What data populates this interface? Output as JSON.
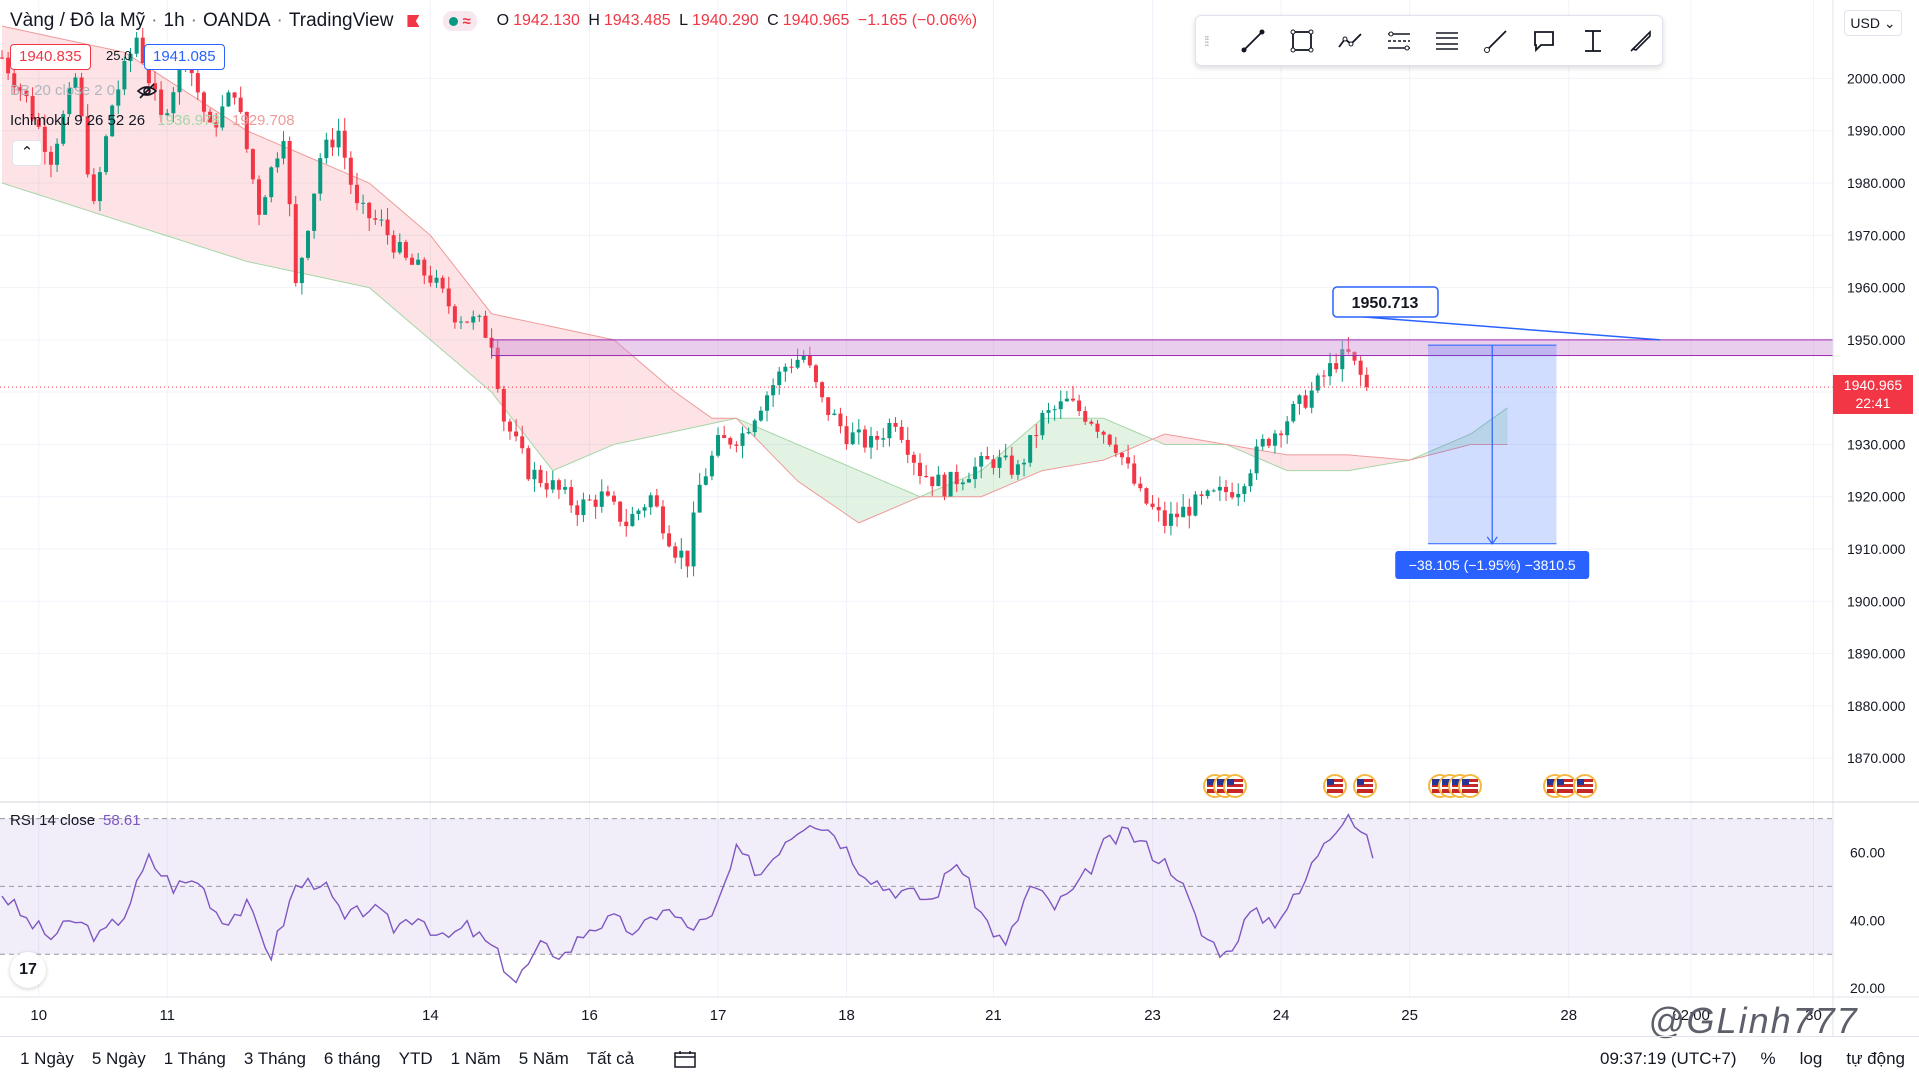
{
  "header": {
    "symbol": "Vàng / Đô la Mỹ",
    "interval": "1h",
    "broker": "OANDA",
    "platform": "TradingView",
    "live_glyph": "≈",
    "ohlc": {
      "o_label": "O",
      "o": "1942.130",
      "h_label": "H",
      "h": "1943.485",
      "l_label": "L",
      "l": "1940.290",
      "c_label": "C",
      "c": "1940.965",
      "change": "−1.165 (−0.06%)"
    }
  },
  "quotes": {
    "sell": "1940.835",
    "spread": "25.0",
    "buy": "1941.085"
  },
  "indicators": {
    "bb": {
      "name": "BB 20 close 2 0"
    },
    "ichimoku": {
      "name": "Ichimoku 9 26 52 26",
      "value1": "1936.978",
      "value2": "1929.708"
    },
    "rsi": {
      "name": "RSI 14 close",
      "value": "58.61"
    }
  },
  "currency_button": "USD",
  "last_price": {
    "price": "1940.965",
    "countdown": "22:41"
  },
  "drawing_toolbar": [
    "trend-line-icon",
    "rectangle-icon",
    "path-icon",
    "parallel-channel-icon",
    "fib-channel-icon",
    "ray-icon",
    "callout-icon",
    "price-range-icon",
    "brush-icon"
  ],
  "annotations": {
    "resistance_label": "1950.713",
    "measure_label": "−38.105 (−1.95%) −3810.5"
  },
  "footer": {
    "ranges": [
      "1 Ngày",
      "5 Ngày",
      "1 Tháng",
      "3 Tháng",
      "6 tháng",
      "YTD",
      "1 Năm",
      "5 Năm",
      "Tất cả"
    ],
    "time": "09:37:19 (UTC+7)",
    "percent": "%",
    "log": "log",
    "auto": "tự động"
  },
  "watermark": "@GLinh777",
  "tv_logo": "17",
  "chart_data": {
    "type": "candlestick",
    "price_axis": {
      "ylim": [
        1862,
        2015
      ],
      "ticks": [
        2000,
        1990,
        1980,
        1970,
        1960,
        1950,
        1940,
        1930,
        1920,
        1910,
        1900,
        1890,
        1880,
        1870
      ],
      "tick_labels": [
        "2000.000",
        "1990.000",
        "1980.000",
        "1970.000",
        "1960.000",
        "1950.000",
        "1940.000",
        "1930.000",
        "1920.000",
        "1910.000",
        "1900.000",
        "1890.000",
        "1880.000",
        "1870.000"
      ]
    },
    "time_axis": {
      "labels": [
        "10",
        "11",
        "14",
        "16",
        "17",
        "18",
        "21",
        "23",
        "24",
        "25",
        "28",
        "02:00",
        "30"
      ],
      "label_bar_index": [
        6,
        27,
        70,
        96,
        117,
        138,
        162,
        188,
        209,
        230,
        256,
        276,
        296
      ]
    },
    "price_path": [
      [
        0,
        2004
      ],
      [
        4,
        1996
      ],
      [
        8,
        1985
      ],
      [
        12,
        2000
      ],
      [
        15,
        1975
      ],
      [
        18,
        1995
      ],
      [
        22,
        2008
      ],
      [
        26,
        1992
      ],
      [
        30,
        2005
      ],
      [
        34,
        1990
      ],
      [
        38,
        1998
      ],
      [
        42,
        1975
      ],
      [
        46,
        1990
      ],
      [
        48,
        1960
      ],
      [
        52,
        1985
      ],
      [
        55,
        1990
      ],
      [
        58,
        1975
      ],
      [
        62,
        1972
      ],
      [
        66,
        1965
      ],
      [
        70,
        1962
      ],
      [
        74,
        1955
      ],
      [
        78,
        1953
      ],
      [
        80,
        1950
      ],
      [
        82,
        1935
      ],
      [
        86,
        1925
      ],
      [
        90,
        1922
      ],
      [
        94,
        1918
      ],
      [
        98,
        1920
      ],
      [
        102,
        1915
      ],
      [
        106,
        1920
      ],
      [
        110,
        1910
      ],
      [
        112,
        1908
      ],
      [
        114,
        1922
      ],
      [
        117,
        1930
      ],
      [
        121,
        1932
      ],
      [
        124,
        1938
      ],
      [
        128,
        1945
      ],
      [
        131,
        1947
      ],
      [
        134,
        1938
      ],
      [
        138,
        1932
      ],
      [
        142,
        1930
      ],
      [
        146,
        1935
      ],
      [
        150,
        1925
      ],
      [
        154,
        1922
      ],
      [
        158,
        1925
      ],
      [
        162,
        1927
      ],
      [
        166,
        1925
      ],
      [
        170,
        1935
      ],
      [
        174,
        1938
      ],
      [
        178,
        1935
      ],
      [
        182,
        1930
      ],
      [
        186,
        1920
      ],
      [
        190,
        1915
      ],
      [
        194,
        1918
      ],
      [
        198,
        1920
      ],
      [
        202,
        1922
      ],
      [
        206,
        1930
      ],
      [
        210,
        1935
      ],
      [
        214,
        1940
      ],
      [
        218,
        1946
      ],
      [
        220,
        1947
      ],
      [
        222,
        1943
      ],
      [
        223,
        1940.965
      ]
    ],
    "ichimoku_span_a": [
      [
        0,
        1980
      ],
      [
        40,
        1965
      ],
      [
        60,
        1960
      ],
      [
        70,
        1950
      ],
      [
        80,
        1940
      ],
      [
        90,
        1925
      ],
      [
        100,
        1930
      ],
      [
        120,
        1935
      ],
      [
        140,
        1925
      ],
      [
        150,
        1920
      ],
      [
        160,
        1925
      ],
      [
        170,
        1935
      ],
      [
        180,
        1935
      ],
      [
        190,
        1930
      ],
      [
        200,
        1930
      ],
      [
        210,
        1925
      ],
      [
        220,
        1925
      ],
      [
        230,
        1927
      ],
      [
        240,
        1932
      ],
      [
        246,
        1937
      ]
    ],
    "ichimoku_span_b": [
      [
        0,
        2010
      ],
      [
        20,
        2005
      ],
      [
        40,
        1990
      ],
      [
        60,
        1980
      ],
      [
        70,
        1970
      ],
      [
        80,
        1955
      ],
      [
        100,
        1950
      ],
      [
        110,
        1940
      ],
      [
        116,
        1935
      ],
      [
        120,
        1935
      ],
      [
        130,
        1923
      ],
      [
        140,
        1915
      ],
      [
        150,
        1920
      ],
      [
        160,
        1920
      ],
      [
        170,
        1925
      ],
      [
        180,
        1927
      ],
      [
        190,
        1932
      ],
      [
        200,
        1930
      ],
      [
        210,
        1928
      ],
      [
        220,
        1928
      ],
      [
        230,
        1927
      ],
      [
        240,
        1930
      ],
      [
        246,
        1930
      ]
    ],
    "resistance_zone": {
      "x_start_bar": 80,
      "x_end_bar": 302,
      "y_top": 1950,
      "y_bottom": 1947
    },
    "measure": {
      "x_start_bar": 233,
      "x_end_bar": 254,
      "y_top": 1949,
      "y_bottom": 1911
    },
    "rsi": {
      "ylim": [
        18,
        74
      ],
      "ticks": [
        60,
        40,
        20
      ],
      "tick_labels": [
        "60.00",
        "40.00",
        "20.00"
      ],
      "levels": [
        70,
        50,
        30
      ],
      "values": [
        [
          0,
          48
        ],
        [
          4,
          40
        ],
        [
          8,
          35
        ],
        [
          12,
          40
        ],
        [
          16,
          35
        ],
        [
          20,
          42
        ],
        [
          24,
          58
        ],
        [
          28,
          50
        ],
        [
          32,
          52
        ],
        [
          36,
          40
        ],
        [
          40,
          44
        ],
        [
          44,
          30
        ],
        [
          48,
          50
        ],
        [
          52,
          52
        ],
        [
          56,
          40
        ],
        [
          60,
          44
        ],
        [
          64,
          38
        ],
        [
          68,
          42
        ],
        [
          72,
          34
        ],
        [
          76,
          38
        ],
        [
          80,
          32
        ],
        [
          84,
          22
        ],
        [
          88,
          32
        ],
        [
          92,
          30
        ],
        [
          96,
          38
        ],
        [
          100,
          40
        ],
        [
          104,
          36
        ],
        [
          108,
          44
        ],
        [
          112,
          38
        ],
        [
          116,
          40
        ],
        [
          120,
          60
        ],
        [
          124,
          54
        ],
        [
          128,
          64
        ],
        [
          132,
          70
        ],
        [
          136,
          66
        ],
        [
          140,
          56
        ],
        [
          144,
          50
        ],
        [
          148,
          48
        ],
        [
          152,
          46
        ],
        [
          156,
          58
        ],
        [
          160,
          42
        ],
        [
          164,
          32
        ],
        [
          168,
          50
        ],
        [
          172,
          44
        ],
        [
          176,
          50
        ],
        [
          180,
          62
        ],
        [
          184,
          66
        ],
        [
          188,
          60
        ],
        [
          192,
          54
        ],
        [
          196,
          36
        ],
        [
          200,
          30
        ],
        [
          204,
          42
        ],
        [
          208,
          40
        ],
        [
          212,
          48
        ],
        [
          216,
          64
        ],
        [
          220,
          72
        ],
        [
          222,
          66
        ],
        [
          224,
          60
        ]
      ]
    }
  }
}
